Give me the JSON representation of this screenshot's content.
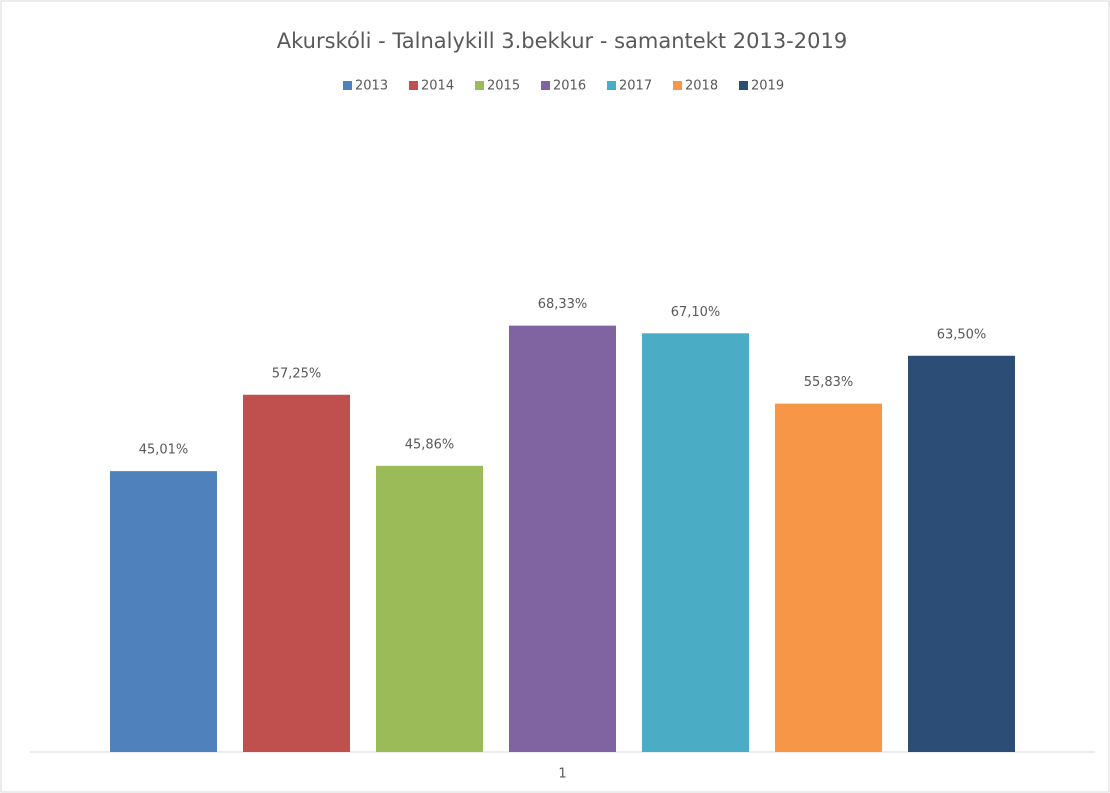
{
  "chart_data": {
    "type": "bar",
    "title": "Akurskóli - Talnalykill 3.bekkur - samantekt 2013-2019",
    "categories": [
      "1"
    ],
    "series": [
      {
        "name": "2013",
        "color": "#4f81bd",
        "values": [
          45.01
        ],
        "value_labels": [
          "45,01%"
        ]
      },
      {
        "name": "2014",
        "color": "#c0504d",
        "values": [
          57.25
        ],
        "value_labels": [
          "57,25%"
        ]
      },
      {
        "name": "2015",
        "color": "#9bbb59",
        "values": [
          45.86
        ],
        "value_labels": [
          "45,86%"
        ]
      },
      {
        "name": "2016",
        "color": "#8064a2",
        "values": [
          68.33
        ],
        "value_labels": [
          "68,33%"
        ]
      },
      {
        "name": "2017",
        "color": "#4bacc6",
        "values": [
          67.1
        ],
        "value_labels": [
          "67,10%"
        ]
      },
      {
        "name": "2018",
        "color": "#f79646",
        "values": [
          55.83
        ],
        "value_labels": [
          "55,83%"
        ]
      },
      {
        "name": "2019",
        "color": "#2c4d75",
        "values": [
          63.5
        ],
        "value_labels": [
          "63,50%"
        ]
      }
    ],
    "ylim": [
      0,
      100
    ],
    "legend": "top"
  }
}
